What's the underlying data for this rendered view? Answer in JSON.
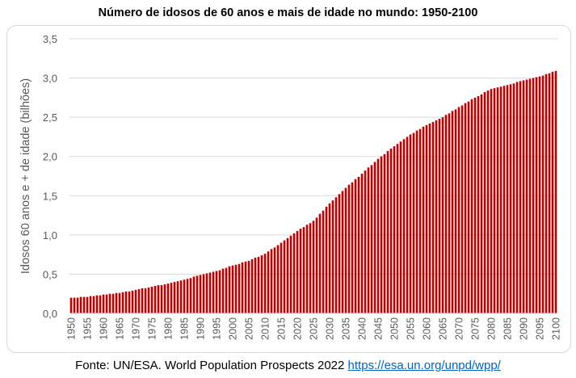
{
  "source": {
    "text": "Fonte: UN/ESA. World Population Prospects 2022 ",
    "link": "https://esa.un.org/unpd/wpp/"
  },
  "colors": {
    "bar": "#c00000",
    "grid": "#d9d9d9",
    "axis_text": "#595959"
  },
  "chart_data": {
    "type": "bar",
    "title": "Número de idosos de 60 anos e mais de idade no mundo: 1950-2100",
    "xlabel": "",
    "ylabel": "Idosos 60 anos e + de idade (bilhões)",
    "ylim": [
      0,
      3.5
    ],
    "yticks": [
      "0,0",
      "0,5",
      "1,0",
      "1,5",
      "2,0",
      "2,5",
      "3,0",
      "3,5"
    ],
    "ytick_values": [
      0,
      0.5,
      1,
      1.5,
      2,
      2.5,
      3,
      3.5
    ],
    "grid": true,
    "x_start": 1950,
    "x_label_step": 5,
    "values": [
      0.2,
      0.2,
      0.2,
      0.21,
      0.21,
      0.21,
      0.22,
      0.22,
      0.23,
      0.23,
      0.24,
      0.24,
      0.25,
      0.25,
      0.26,
      0.26,
      0.27,
      0.28,
      0.28,
      0.29,
      0.3,
      0.31,
      0.32,
      0.32,
      0.33,
      0.34,
      0.35,
      0.36,
      0.36,
      0.37,
      0.38,
      0.39,
      0.4,
      0.41,
      0.42,
      0.43,
      0.44,
      0.45,
      0.47,
      0.48,
      0.49,
      0.5,
      0.51,
      0.52,
      0.53,
      0.54,
      0.55,
      0.57,
      0.58,
      0.6,
      0.61,
      0.62,
      0.63,
      0.65,
      0.66,
      0.67,
      0.69,
      0.71,
      0.72,
      0.74,
      0.76,
      0.79,
      0.82,
      0.84,
      0.87,
      0.9,
      0.93,
      0.96,
      0.99,
      1.02,
      1.05,
      1.08,
      1.1,
      1.13,
      1.15,
      1.18,
      1.22,
      1.27,
      1.31,
      1.36,
      1.4,
      1.44,
      1.48,
      1.52,
      1.56,
      1.6,
      1.64,
      1.67,
      1.71,
      1.74,
      1.78,
      1.82,
      1.86,
      1.89,
      1.93,
      1.97,
      2.0,
      2.03,
      2.07,
      2.1,
      2.13,
      2.16,
      2.19,
      2.22,
      2.25,
      2.28,
      2.3,
      2.33,
      2.35,
      2.38,
      2.4,
      2.42,
      2.44,
      2.46,
      2.48,
      2.5,
      2.53,
      2.55,
      2.58,
      2.6,
      2.63,
      2.65,
      2.68,
      2.7,
      2.73,
      2.75,
      2.77,
      2.79,
      2.82,
      2.84,
      2.86,
      2.87,
      2.88,
      2.89,
      2.9,
      2.91,
      2.92,
      2.93,
      2.95,
      2.96,
      2.97,
      2.98,
      2.99,
      3.0,
      3.01,
      3.02,
      3.03,
      3.05,
      3.06,
      3.08,
      3.09
    ]
  }
}
